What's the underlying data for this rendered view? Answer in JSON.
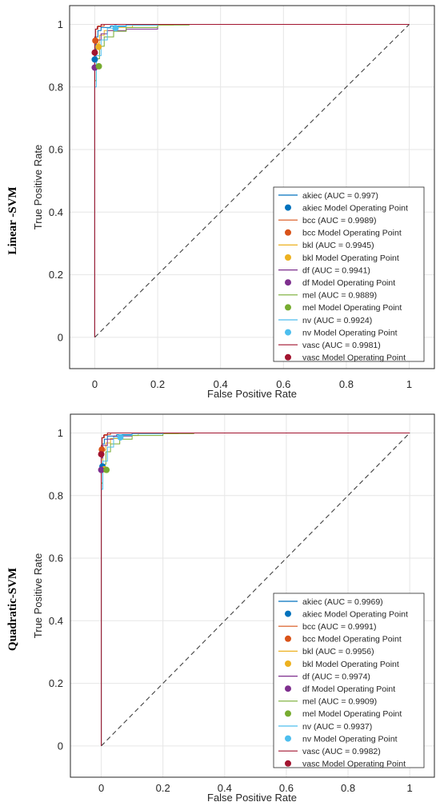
{
  "chart_data": [
    {
      "type": "line",
      "panel_label": "Linear -SVM",
      "xlabel": "False Positive Rate",
      "ylabel": "True Positive Rate",
      "xlim": [
        -0.08,
        1.08
      ],
      "ylim": [
        -0.1,
        1.06
      ],
      "xticks": [
        "0",
        "0.2",
        "0.4",
        "0.6",
        "0.8",
        "1"
      ],
      "yticks": [
        "0",
        "0.2",
        "0.4",
        "0.6",
        "0.8",
        "1"
      ],
      "grid": true,
      "legend_position": "bottom-right",
      "chance_line": {
        "x": [
          0,
          1
        ],
        "y": [
          0,
          1
        ],
        "style": "dashed"
      },
      "series": [
        {
          "name": "akiec (AUC = 0.997)",
          "color": "#0072BD",
          "op_label": "akiec Model Operating Point",
          "op_color": "#0072BD",
          "op": [
            0.0,
            0.888
          ],
          "x": [
            0,
            0,
            0.003,
            0.01,
            0.02,
            0.05,
            0.1,
            0.2,
            1
          ],
          "y": [
            0,
            0.85,
            0.92,
            0.96,
            0.98,
            0.99,
            0.995,
            1,
            1
          ]
        },
        {
          "name": "bcc (AUC = 0.9989)",
          "color": "#D95319",
          "op_label": "bcc Model Operating Point",
          "op_color": "#D95319",
          "op": [
            0.002,
            0.948
          ],
          "x": [
            0,
            0,
            0.003,
            0.01,
            0.03,
            0.08,
            0.2,
            1
          ],
          "y": [
            0,
            0.9,
            0.95,
            0.985,
            0.995,
            1,
            1,
            1
          ]
        },
        {
          "name": "bkl (AUC = 0.9945)",
          "color": "#EDB120",
          "op_label": "bkl Model Operating Point",
          "op_color": "#EDB120",
          "op": [
            0.012,
            0.928
          ],
          "x": [
            0,
            0,
            0.005,
            0.015,
            0.03,
            0.06,
            0.12,
            0.25,
            1
          ],
          "y": [
            0,
            0.8,
            0.9,
            0.94,
            0.965,
            0.98,
            0.99,
            0.998,
            1
          ]
        },
        {
          "name": "df (AUC = 0.9941)",
          "color": "#7E2F8E",
          "op_label": "df Model Operating Point",
          "op_color": "#7E2F8E",
          "op": [
            0.0,
            0.862
          ],
          "x": [
            0,
            0,
            0.005,
            0.02,
            0.04,
            0.1,
            0.2,
            0.3,
            1
          ],
          "y": [
            0,
            0.84,
            0.9,
            0.95,
            0.97,
            0.98,
            0.985,
            1,
            1
          ]
        },
        {
          "name": "mel (AUC = 0.9889)",
          "color": "#77AC30",
          "op_label": "mel Model Operating Point",
          "op_color": "#77AC30",
          "op": [
            0.013,
            0.866
          ],
          "x": [
            0,
            0,
            0.005,
            0.015,
            0.03,
            0.06,
            0.1,
            0.2,
            0.3,
            1
          ],
          "y": [
            0,
            0.7,
            0.82,
            0.89,
            0.93,
            0.96,
            0.978,
            0.99,
            0.998,
            1
          ]
        },
        {
          "name": "nv (AUC = 0.9924)",
          "color": "#4DBEEE",
          "op_label": "nv Model Operating Point",
          "op_color": "#4DBEEE",
          "op": [
            0.066,
            0.988
          ],
          "x": [
            0,
            0,
            0.005,
            0.02,
            0.04,
            0.066,
            0.1,
            0.2,
            0.3,
            1
          ],
          "y": [
            0,
            0.6,
            0.8,
            0.9,
            0.95,
            0.988,
            0.993,
            0.997,
            1,
            1
          ]
        },
        {
          "name": "vasc (AUC = 0.9981)",
          "color": "#A2142F",
          "op_label": "vasc Model Operating Point",
          "op_color": "#A2142F",
          "op": [
            0.0,
            0.91
          ],
          "x": [
            0,
            0,
            0.002,
            0.008,
            0.02,
            0.05,
            0.1,
            1
          ],
          "y": [
            0,
            0.9,
            0.96,
            0.985,
            0.993,
            1,
            1,
            1
          ]
        }
      ]
    },
    {
      "type": "line",
      "panel_label": "Quadratic-SVM",
      "xlabel": "False Positive Rate",
      "ylabel": "True Positive Rate",
      "xlim": [
        -0.1,
        1.08
      ],
      "ylim": [
        -0.1,
        1.06
      ],
      "xticks": [
        "0",
        "0.2",
        "0.4",
        "0.6",
        "0.8",
        "1"
      ],
      "yticks": [
        "0",
        "0.2",
        "0.4",
        "0.6",
        "0.8",
        "1"
      ],
      "grid": true,
      "legend_position": "bottom-right",
      "chance_line": {
        "x": [
          0,
          1
        ],
        "y": [
          0,
          1
        ],
        "style": "dashed"
      },
      "series": [
        {
          "name": "akiec (AUC = 0.9969)",
          "color": "#0072BD",
          "op_label": "akiec Model Operating Point",
          "op_color": "#0072BD",
          "op": [
            0.004,
            0.893
          ],
          "x": [
            0,
            0,
            0.003,
            0.01,
            0.02,
            0.05,
            0.1,
            0.2,
            1
          ],
          "y": [
            0,
            0.86,
            0.93,
            0.965,
            0.98,
            0.99,
            0.995,
            1,
            1
          ]
        },
        {
          "name": "bcc (AUC = 0.9991)",
          "color": "#D95319",
          "op_label": "bcc Model Operating Point",
          "op_color": "#D95319",
          "op": [
            0.002,
            0.947
          ],
          "x": [
            0,
            0,
            0.003,
            0.01,
            0.03,
            0.08,
            0.2,
            1
          ],
          "y": [
            0,
            0.91,
            0.955,
            0.985,
            0.995,
            1,
            1,
            1
          ]
        },
        {
          "name": "bkl (AUC = 0.9956)",
          "color": "#EDB120",
          "op_label": "bkl Model Operating Point",
          "op_color": "#EDB120",
          "op": [
            0.01,
            0.884
          ],
          "x": [
            0,
            0,
            0.005,
            0.015,
            0.03,
            0.06,
            0.12,
            0.25,
            1
          ],
          "y": [
            0,
            0.82,
            0.9,
            0.945,
            0.968,
            0.982,
            0.992,
            0.998,
            1
          ]
        },
        {
          "name": "df (AUC = 0.9974)",
          "color": "#7E2F8E",
          "op_label": "df Model Operating Point",
          "op_color": "#7E2F8E",
          "op": [
            0.0,
            0.882
          ],
          "x": [
            0,
            0,
            0.005,
            0.02,
            0.04,
            0.1,
            0.2,
            1
          ],
          "y": [
            0,
            0.86,
            0.92,
            0.96,
            0.98,
            0.99,
            1,
            1
          ]
        },
        {
          "name": "mel (AUC = 0.9909)",
          "color": "#77AC30",
          "op_label": "mel Model Operating Point",
          "op_color": "#77AC30",
          "op": [
            0.017,
            0.882
          ],
          "x": [
            0,
            0,
            0.005,
            0.015,
            0.03,
            0.06,
            0.1,
            0.2,
            0.3,
            1
          ],
          "y": [
            0,
            0.72,
            0.84,
            0.9,
            0.94,
            0.965,
            0.98,
            0.992,
            0.998,
            1
          ]
        },
        {
          "name": "nv (AUC = 0.9937)",
          "color": "#4DBEEE",
          "op_label": "nv Model Operating Point",
          "op_color": "#4DBEEE",
          "op": [
            0.062,
            0.986
          ],
          "x": [
            0,
            0,
            0.005,
            0.02,
            0.04,
            0.062,
            0.1,
            0.2,
            0.3,
            1
          ],
          "y": [
            0,
            0.62,
            0.82,
            0.91,
            0.955,
            0.986,
            0.992,
            0.997,
            1,
            1
          ]
        },
        {
          "name": "vasc (AUC = 0.9982)",
          "color": "#A2142F",
          "op_label": "vasc Model Operating Point",
          "op_color": "#A2142F",
          "op": [
            0.0,
            0.932
          ],
          "x": [
            0,
            0,
            0.002,
            0.008,
            0.02,
            0.05,
            0.1,
            1
          ],
          "y": [
            0,
            0.91,
            0.96,
            0.985,
            0.993,
            1,
            1,
            1
          ]
        }
      ]
    }
  ]
}
